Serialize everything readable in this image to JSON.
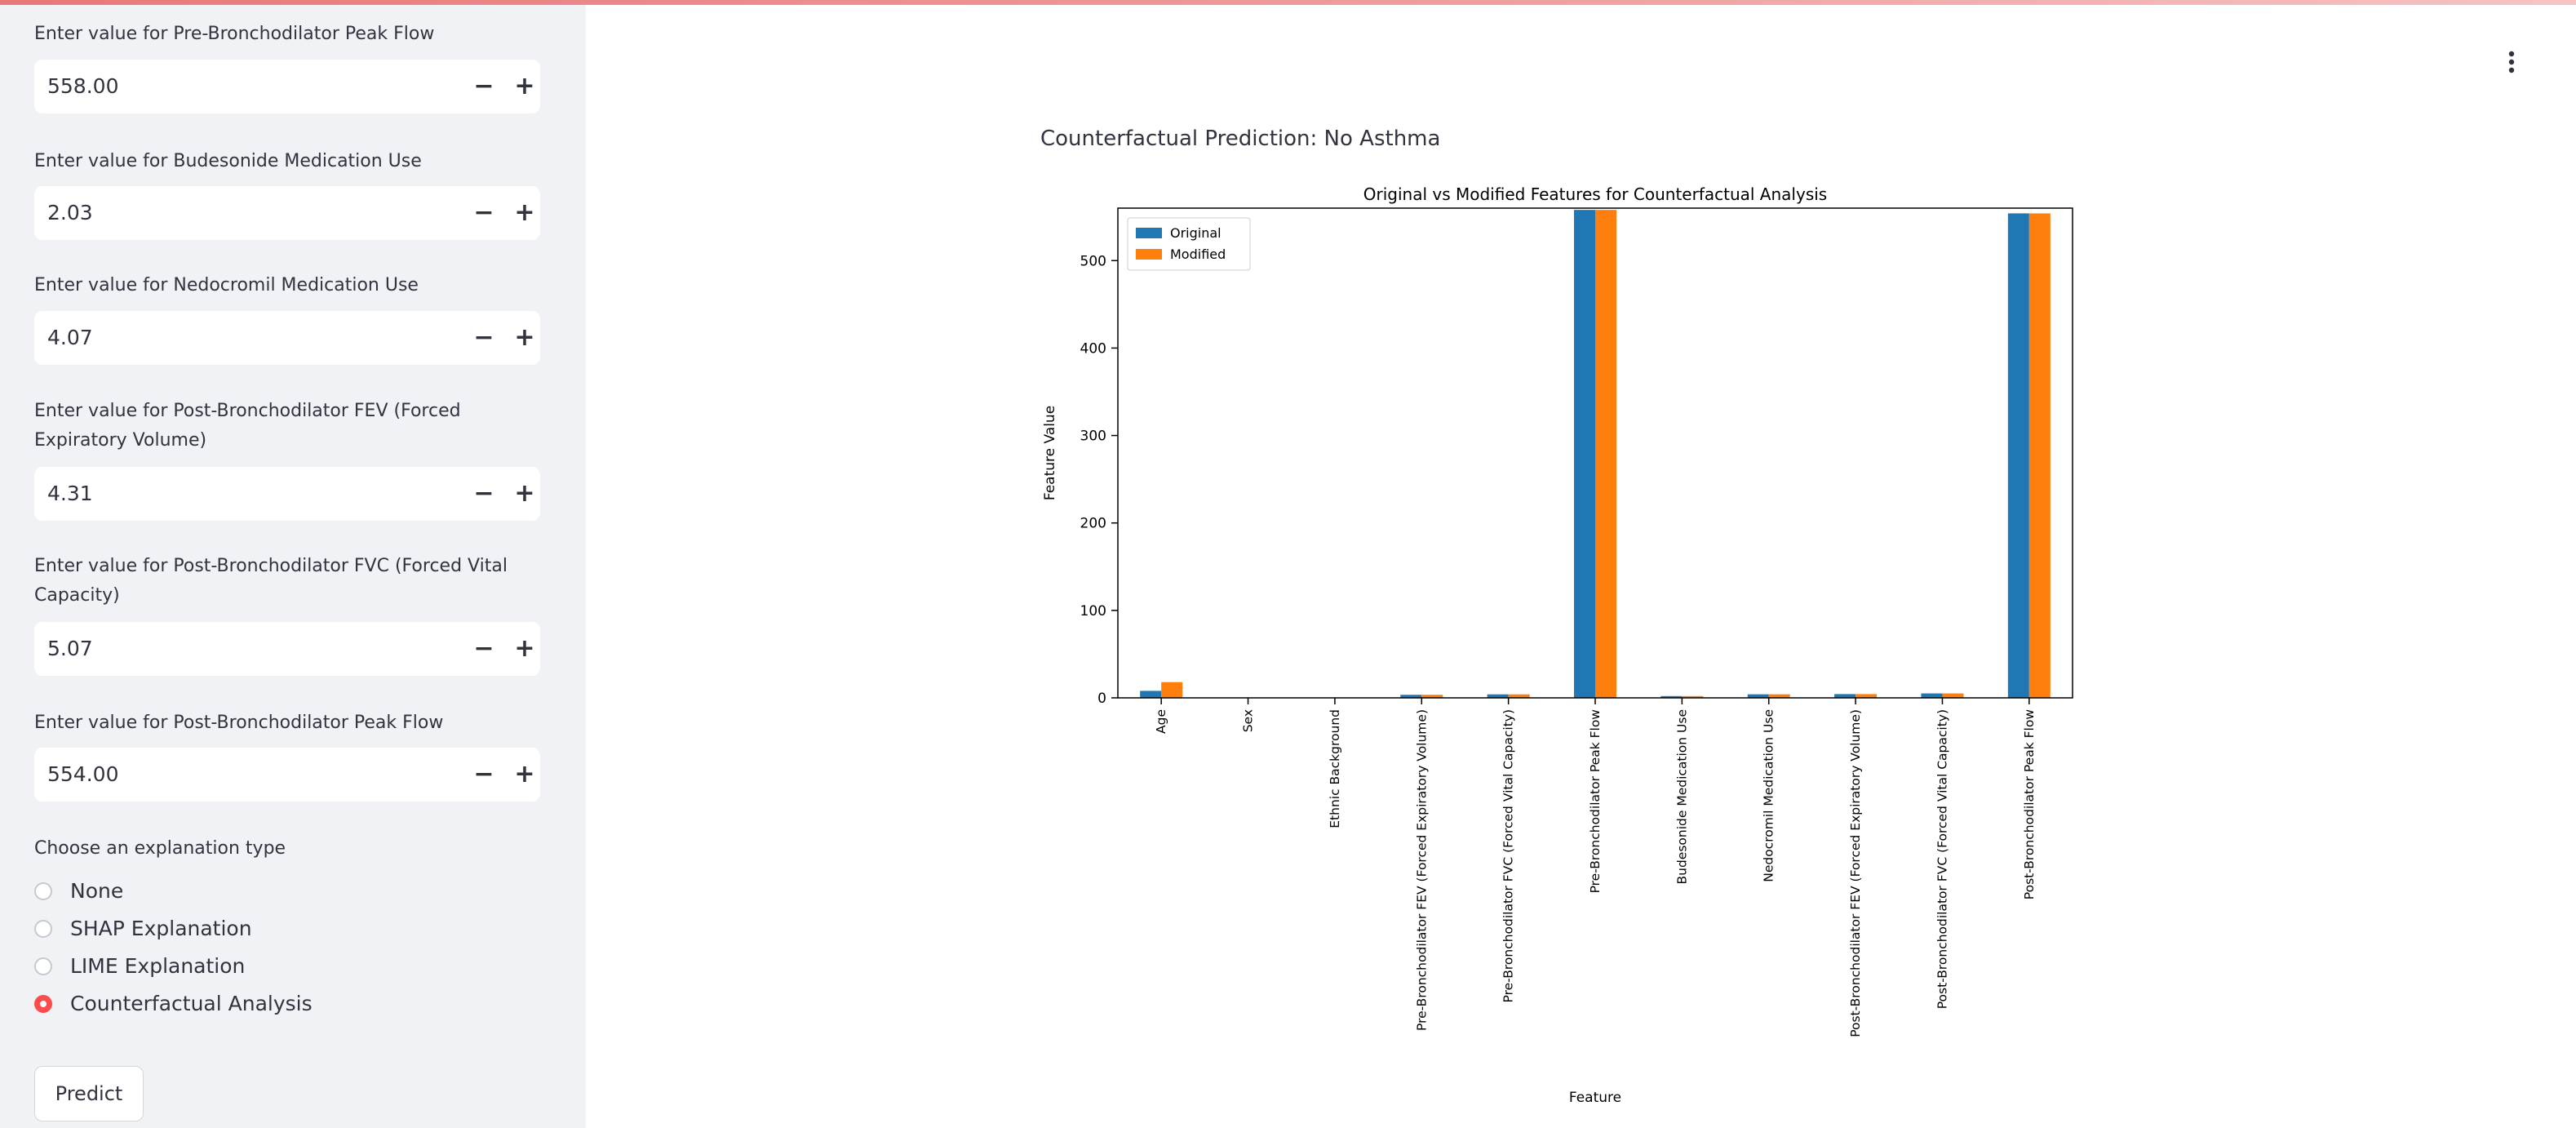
{
  "sidebar": {
    "fields": [
      {
        "label": "Enter value for Pre-Bronchodilator Peak Flow",
        "value": "558.00"
      },
      {
        "label": "Enter value for Budesonide Medication Use",
        "value": "2.03"
      },
      {
        "label": "Enter value for Nedocromil Medication Use",
        "value": "4.07"
      },
      {
        "label": "Enter value for Post-Bronchodilator FEV (Forced Expiratory Volume)",
        "value": "4.31"
      },
      {
        "label": "Enter value for Post-Bronchodilator FVC (Forced Vital Capacity)",
        "value": "5.07"
      },
      {
        "label": "Enter value for Post-Bronchodilator Peak Flow",
        "value": "554.00"
      }
    ],
    "stepper_minus": "−",
    "stepper_plus": "+",
    "explanation": {
      "label": "Choose an explanation type",
      "options": [
        "None",
        "SHAP Explanation",
        "LIME Explanation",
        "Counterfactual Analysis"
      ],
      "selected": "Counterfactual Analysis"
    },
    "predict_label": "Predict"
  },
  "main": {
    "prediction_text": "Counterfactual Prediction: No Asthma"
  },
  "colors": {
    "accent": "#ff4b4b",
    "original": "#1f77b4",
    "modified": "#ff7f0e"
  },
  "chart_data": {
    "type": "bar",
    "title": "Original vs Modified Features for Counterfactual Analysis",
    "xlabel": "Feature",
    "ylabel": "Feature Value",
    "ylim": [
      0,
      560
    ],
    "yticks": [
      0,
      100,
      200,
      300,
      400,
      500
    ],
    "legend_placement": "top-left",
    "categories": [
      "Age",
      "Sex",
      "Ethnic Background",
      "Pre-Bronchodilator FEV (Forced Expiratory Volume)",
      "Pre-Bronchodilator FVC (Forced Vital Capacity)",
      "Pre-Bronchodilator Peak Flow",
      "Budesonide Medication Use",
      "Nedocromil Medication Use",
      "Post-Bronchodilator FEV (Forced Expiratory Volume)",
      "Post-Bronchodilator FVC (Forced Vital Capacity)",
      "Post-Bronchodilator Peak Flow"
    ],
    "series": [
      {
        "name": "Original",
        "color": "#1f77b4",
        "values": [
          8,
          0,
          0,
          3.5,
          4,
          558,
          2.03,
          4.07,
          4.31,
          5.07,
          554
        ]
      },
      {
        "name": "Modified",
        "color": "#ff7f0e",
        "values": [
          18,
          0,
          0,
          3.5,
          4,
          558,
          2.03,
          4.07,
          4.31,
          5.07,
          554
        ]
      }
    ]
  }
}
